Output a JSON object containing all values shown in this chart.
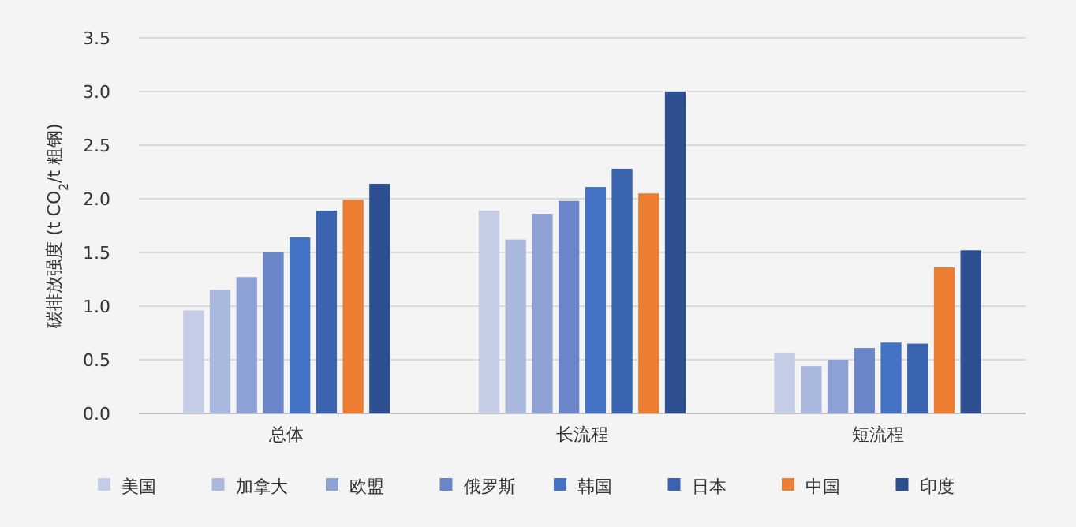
{
  "chart_data": {
    "type": "bar",
    "ylabel": "碳排放强度 (t CO$_{2}$/t 粗钢)",
    "categories": [
      "总体",
      "长流程",
      "短流程"
    ],
    "series": [
      {
        "name": "美国",
        "color": "#c5cde6",
        "values": [
          0.96,
          1.89,
          0.56
        ]
      },
      {
        "name": "加拿大",
        "color": "#abb8de",
        "values": [
          1.15,
          1.62,
          0.44
        ]
      },
      {
        "name": "欧盟",
        "color": "#8ea1d4",
        "values": [
          1.27,
          1.86,
          0.5
        ]
      },
      {
        "name": "俄罗斯",
        "color": "#6a86c8",
        "values": [
          1.5,
          1.98,
          0.61
        ]
      },
      {
        "name": "韩国",
        "color": "#4472c4",
        "values": [
          1.64,
          2.11,
          0.66
        ]
      },
      {
        "name": "日本",
        "color": "#3a63b0",
        "values": [
          1.89,
          2.28,
          0.65
        ]
      },
      {
        "name": "中国",
        "color": "#ed7d31",
        "values": [
          1.99,
          2.05,
          1.36
        ]
      },
      {
        "name": "印度",
        "color": "#2e4f8f",
        "values": [
          2.14,
          3.0,
          1.52
        ]
      }
    ],
    "ylim": [
      0,
      3.5
    ],
    "yticks": [
      {
        "value": 0,
        "label": "0.0"
      },
      {
        "value": 0.5,
        "label": "0.5"
      },
      {
        "value": 1,
        "label": "1.0"
      },
      {
        "value": 1.5,
        "label": "1.5"
      },
      {
        "value": 2,
        "label": "2.0"
      },
      {
        "value": 2.5,
        "label": "2.5"
      },
      {
        "value": 3,
        "label": "3.0"
      },
      {
        "value": 3.5,
        "label": "3.5"
      }
    ],
    "grid": "y",
    "legend": "bottom"
  }
}
